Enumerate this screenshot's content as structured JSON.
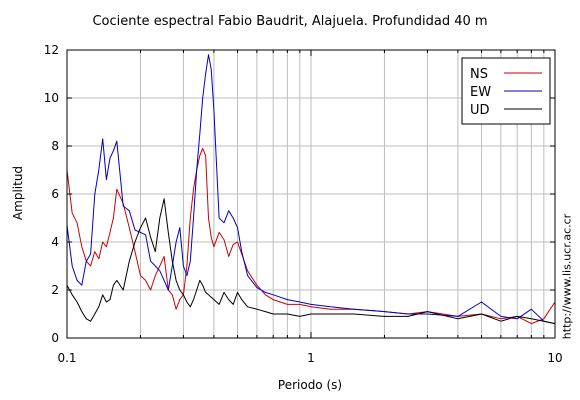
{
  "chart_data": {
    "type": "line",
    "title": "Cociente espectral Fabio Baudrit, Alajuela. Profundidad 40 m",
    "xlabel": "Periodo (s)",
    "ylabel": "Amplitud",
    "xscale": "log",
    "xlim": [
      0.1,
      10
    ],
    "ylim": [
      0,
      12
    ],
    "xticks": [
      "0.1",
      "1",
      "10"
    ],
    "yticks": [
      "0",
      "2",
      "4",
      "6",
      "8",
      "10",
      "12"
    ],
    "grid": true,
    "legend_position": "top-right",
    "annotation": "http://www.lis.ucr.ac.cr",
    "series": [
      {
        "name": "NS",
        "color": "#cc0000",
        "x": [
          0.1,
          0.105,
          0.11,
          0.115,
          0.12,
          0.125,
          0.13,
          0.135,
          0.14,
          0.145,
          0.15,
          0.155,
          0.16,
          0.17,
          0.18,
          0.19,
          0.2,
          0.21,
          0.22,
          0.23,
          0.24,
          0.25,
          0.26,
          0.27,
          0.28,
          0.29,
          0.3,
          0.31,
          0.32,
          0.33,
          0.34,
          0.35,
          0.36,
          0.37,
          0.38,
          0.39,
          0.4,
          0.42,
          0.44,
          0.46,
          0.48,
          0.5,
          0.52,
          0.55,
          0.6,
          0.65,
          0.7,
          0.8,
          0.9,
          1.0,
          1.2,
          1.5,
          2.0,
          2.5,
          3.0,
          4.0,
          5.0,
          6.0,
          7.0,
          8.0,
          9.0,
          10.0
        ],
        "y": [
          7.0,
          5.2,
          4.8,
          3.8,
          3.2,
          3.0,
          3.6,
          3.3,
          4.0,
          3.8,
          4.4,
          5.0,
          6.2,
          5.6,
          4.6,
          3.6,
          2.6,
          2.4,
          2.0,
          2.6,
          3.0,
          3.4,
          2.0,
          1.8,
          1.2,
          1.6,
          1.8,
          3.0,
          5.0,
          6.2,
          7.0,
          7.6,
          7.9,
          7.6,
          5.0,
          4.2,
          3.8,
          4.4,
          4.1,
          3.4,
          3.9,
          4.0,
          3.5,
          2.8,
          2.2,
          1.8,
          1.6,
          1.4,
          1.4,
          1.3,
          1.2,
          1.2,
          1.1,
          1.0,
          1.1,
          0.9,
          1.0,
          0.8,
          0.9,
          0.6,
          0.8,
          1.5
        ]
      },
      {
        "name": "EW",
        "color": "#0000cc",
        "x": [
          0.1,
          0.105,
          0.11,
          0.115,
          0.12,
          0.125,
          0.13,
          0.135,
          0.14,
          0.145,
          0.15,
          0.155,
          0.16,
          0.17,
          0.18,
          0.19,
          0.2,
          0.21,
          0.22,
          0.23,
          0.24,
          0.25,
          0.26,
          0.27,
          0.28,
          0.29,
          0.3,
          0.31,
          0.32,
          0.33,
          0.34,
          0.35,
          0.36,
          0.37,
          0.38,
          0.39,
          0.4,
          0.42,
          0.44,
          0.46,
          0.48,
          0.5,
          0.52,
          0.55,
          0.6,
          0.65,
          0.7,
          0.8,
          0.9,
          1.0,
          1.2,
          1.5,
          2.0,
          2.5,
          3.0,
          4.0,
          5.0,
          6.0,
          7.0,
          8.0,
          9.0,
          10.0
        ],
        "y": [
          4.7,
          3.0,
          2.4,
          2.2,
          3.2,
          3.5,
          6.0,
          7.0,
          8.3,
          6.6,
          7.5,
          7.8,
          8.2,
          5.5,
          5.3,
          4.5,
          4.4,
          4.3,
          3.2,
          3.0,
          2.8,
          2.4,
          2.0,
          3.0,
          4.0,
          4.6,
          3.0,
          2.6,
          3.2,
          5.0,
          7.0,
          8.5,
          10.0,
          11.0,
          11.8,
          11.2,
          9.5,
          5.0,
          4.8,
          5.3,
          5.0,
          4.6,
          3.6,
          2.6,
          2.1,
          1.9,
          1.8,
          1.6,
          1.5,
          1.4,
          1.3,
          1.2,
          1.1,
          1.0,
          1.0,
          0.9,
          1.5,
          0.9,
          0.8,
          1.2,
          0.7,
          0.6
        ]
      },
      {
        "name": "UD",
        "color": "#000000",
        "x": [
          0.1,
          0.105,
          0.11,
          0.115,
          0.12,
          0.125,
          0.13,
          0.135,
          0.14,
          0.145,
          0.15,
          0.155,
          0.16,
          0.17,
          0.18,
          0.19,
          0.2,
          0.21,
          0.22,
          0.23,
          0.24,
          0.25,
          0.26,
          0.27,
          0.28,
          0.29,
          0.3,
          0.31,
          0.32,
          0.33,
          0.34,
          0.35,
          0.36,
          0.37,
          0.38,
          0.39,
          0.4,
          0.42,
          0.44,
          0.46,
          0.48,
          0.5,
          0.52,
          0.55,
          0.6,
          0.65,
          0.7,
          0.8,
          0.9,
          1.0,
          1.2,
          1.5,
          2.0,
          2.5,
          3.0,
          4.0,
          5.0,
          6.0,
          7.0,
          8.0,
          9.0,
          10.0
        ],
        "y": [
          2.2,
          1.8,
          1.5,
          1.1,
          0.8,
          0.7,
          1.0,
          1.3,
          1.8,
          1.5,
          1.6,
          2.2,
          2.4,
          2.0,
          3.2,
          4.0,
          4.6,
          5.0,
          4.2,
          3.6,
          5.0,
          5.8,
          4.4,
          3.2,
          2.4,
          2.0,
          1.8,
          1.5,
          1.3,
          1.6,
          2.0,
          2.4,
          2.2,
          1.9,
          1.8,
          1.7,
          1.6,
          1.4,
          1.9,
          1.6,
          1.4,
          1.9,
          1.6,
          1.3,
          1.2,
          1.1,
          1.0,
          1.0,
          0.9,
          1.0,
          1.0,
          1.0,
          0.9,
          0.9,
          1.1,
          0.8,
          1.0,
          0.7,
          0.9,
          0.8,
          0.7,
          0.6
        ]
      }
    ]
  }
}
